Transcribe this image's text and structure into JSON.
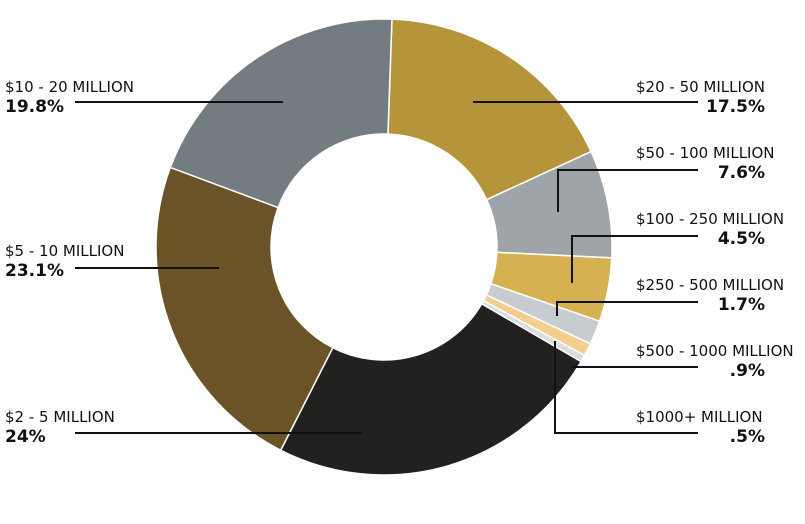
{
  "chart_data": {
    "type": "donut",
    "title": "",
    "slices": [
      {
        "label": "$20 - 50 MILLION",
        "pct_label": "17.5%",
        "value": 17.5,
        "color": "#b5943a"
      },
      {
        "label": "$50 - 100 MILLION",
        "pct_label": "7.6%",
        "value": 7.6,
        "color": "#9fa4a8"
      },
      {
        "label": "$100 - 250 MILLION",
        "pct_label": "4.5%",
        "value": 4.5,
        "color": "#d5b152"
      },
      {
        "label": "$250 - 500 MILLION",
        "pct_label": "1.7%",
        "value": 1.7,
        "color": "#c7ccd0"
      },
      {
        "label": "$500 - 1000 MILLION",
        "pct_label": ".9%",
        "value": 0.9,
        "color": "#f2cf8e"
      },
      {
        "label": "$1000+ MILLION",
        "pct_label": ".5%",
        "value": 0.5,
        "color": "#dadcde"
      },
      {
        "label": "$2 - 5 MILLION",
        "pct_label": "24%",
        "value": 24,
        "color": "#22211f"
      },
      {
        "label": "$5 - 10 MILLION",
        "pct_label": "23.1%",
        "value": 23.1,
        "color": "#6a5427"
      },
      {
        "label": "$10 - 20 MILLION",
        "pct_label": "19.8%",
        "value": 19.8,
        "color": "#737c81"
      }
    ],
    "legend": "none"
  }
}
